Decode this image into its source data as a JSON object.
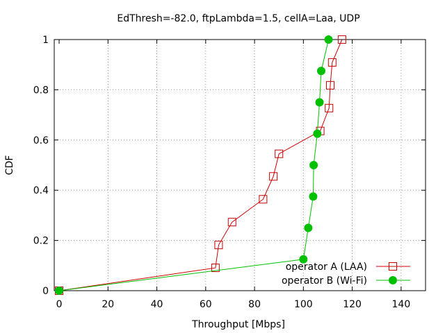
{
  "chart_data": {
    "type": "line",
    "title": "EdThresh=-82.0, ftpLambda=1.5, cellA=Laa, UDP",
    "xlabel": "Throughput [Mbps]",
    "ylabel": "CDF",
    "xlim": [
      -2,
      150
    ],
    "ylim": [
      0,
      1
    ],
    "xticks": [
      0,
      20,
      40,
      60,
      80,
      100,
      120,
      140
    ],
    "yticks": [
      0,
      0.2,
      0.4,
      0.6,
      0.8,
      1
    ],
    "grid": true,
    "legend_position": "bottom-right",
    "series": [
      {
        "name": "operator A (LAA)",
        "color": "#cc0000",
        "marker": "open-square",
        "points": [
          [
            0,
            0
          ],
          [
            64.0,
            0.091
          ],
          [
            65.3,
            0.182
          ],
          [
            70.8,
            0.273
          ],
          [
            83.5,
            0.364
          ],
          [
            87.7,
            0.455
          ],
          [
            90.0,
            0.545
          ],
          [
            106.9,
            0.636
          ],
          [
            110.5,
            0.727
          ],
          [
            111.0,
            0.818
          ],
          [
            111.8,
            0.909
          ],
          [
            115.8,
            1.0
          ]
        ]
      },
      {
        "name": "operator B (Wi-Fi)",
        "color": "#00c000",
        "marker": "filled-circle",
        "points": [
          [
            0,
            0
          ],
          [
            100.0,
            0.125
          ],
          [
            102.0,
            0.25
          ],
          [
            104.0,
            0.375
          ],
          [
            104.2,
            0.5
          ],
          [
            105.7,
            0.625
          ],
          [
            106.6,
            0.75
          ],
          [
            107.3,
            0.875
          ],
          [
            110.3,
            1.0
          ]
        ]
      }
    ]
  }
}
